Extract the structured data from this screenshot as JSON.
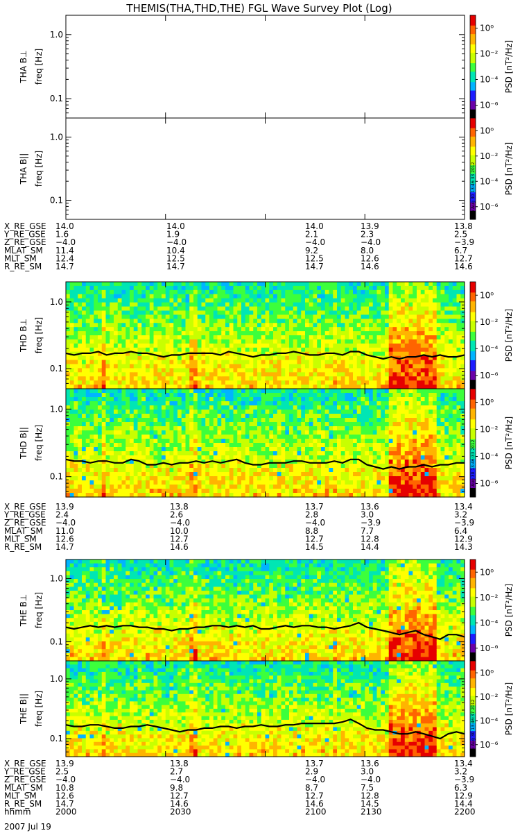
{
  "title": "THEMIS(THA,THD,THE) FGL Wave Survey Plot (Log)",
  "date_label": "2007 Jul 19",
  "colorbar": {
    "label": "PSD [nT²/Hz]",
    "ticks": [
      "10⁰",
      "10⁻²",
      "10⁻⁴",
      "10⁻⁶"
    ],
    "tick_exponents": [
      0,
      -2,
      -4,
      -6
    ],
    "range_exponent": [
      -7,
      1
    ]
  },
  "ylabel_freq": "freq [Hz]",
  "yticks": [
    {
      "value": 1.0,
      "label": "1.0"
    },
    {
      "value": 0.1,
      "label": "0.1"
    }
  ],
  "chart_data": [
    {
      "type": "heatmap",
      "probe": "THA",
      "panel": "THA B⊥",
      "has_data": false,
      "stamp": "",
      "yrange_hz": [
        0.05,
        2.0
      ],
      "log_y": true
    },
    {
      "type": "heatmap",
      "probe": "THA",
      "panel": "THA B||",
      "has_data": false,
      "stamp": "Thu Aug 30 13:46:33 2012",
      "yrange_hz": [
        0.05,
        2.0
      ],
      "log_y": true
    },
    {
      "type": "heatmap",
      "probe": "THD",
      "panel": "THD B⊥",
      "has_data": true,
      "stamp": "",
      "yrange_hz": [
        0.05,
        2.0
      ],
      "log_y": true,
      "line_freq_hz": [
        0.17,
        0.16,
        0.17,
        0.17,
        0.18,
        0.16,
        0.17,
        0.17,
        0.18,
        0.17,
        0.17,
        0.16,
        0.15,
        0.16,
        0.16,
        0.17,
        0.17,
        0.17,
        0.17,
        0.16,
        0.18,
        0.17,
        0.16,
        0.15,
        0.16,
        0.16,
        0.17,
        0.17,
        0.18,
        0.17,
        0.16,
        0.16,
        0.17,
        0.17,
        0.16,
        0.18,
        0.18,
        0.16,
        0.15,
        0.14,
        0.15,
        0.14,
        0.15,
        0.15,
        0.16,
        0.15,
        0.16,
        0.15,
        0.15,
        0.16
      ]
    },
    {
      "type": "heatmap",
      "probe": "THD",
      "panel": "THD B||",
      "has_data": true,
      "stamp": "Thu Aug 30 13:46:33 2012",
      "yrange_hz": [
        0.05,
        2.0
      ],
      "log_y": true,
      "line_freq_hz": [
        0.18,
        0.17,
        0.17,
        0.16,
        0.17,
        0.17,
        0.16,
        0.16,
        0.18,
        0.17,
        0.15,
        0.15,
        0.16,
        0.15,
        0.16,
        0.16,
        0.17,
        0.16,
        0.17,
        0.16,
        0.17,
        0.18,
        0.16,
        0.15,
        0.15,
        0.16,
        0.16,
        0.16,
        0.17,
        0.17,
        0.16,
        0.16,
        0.16,
        0.17,
        0.16,
        0.18,
        0.18,
        0.15,
        0.14,
        0.13,
        0.14,
        0.13,
        0.14,
        0.14,
        0.15,
        0.14,
        0.15,
        0.15,
        0.16,
        0.16
      ]
    },
    {
      "type": "heatmap",
      "probe": "THE",
      "panel": "THE B⊥",
      "has_data": true,
      "stamp": "",
      "yrange_hz": [
        0.05,
        2.0
      ],
      "log_y": true,
      "line_freq_hz": [
        0.17,
        0.16,
        0.17,
        0.18,
        0.17,
        0.18,
        0.17,
        0.18,
        0.18,
        0.17,
        0.17,
        0.16,
        0.16,
        0.15,
        0.16,
        0.16,
        0.17,
        0.17,
        0.18,
        0.18,
        0.17,
        0.18,
        0.17,
        0.18,
        0.16,
        0.16,
        0.17,
        0.18,
        0.17,
        0.18,
        0.18,
        0.17,
        0.17,
        0.16,
        0.17,
        0.18,
        0.2,
        0.17,
        0.16,
        0.15,
        0.14,
        0.13,
        0.14,
        0.15,
        0.13,
        0.12,
        0.11,
        0.13,
        0.13,
        0.12
      ]
    },
    {
      "type": "heatmap",
      "probe": "THE",
      "panel": "THE B||",
      "has_data": true,
      "stamp": "Thu Aug 30 13:46:37 2012",
      "yrange_hz": [
        0.05,
        2.0
      ],
      "log_y": true,
      "line_freq_hz": [
        0.17,
        0.16,
        0.16,
        0.17,
        0.17,
        0.16,
        0.15,
        0.15,
        0.16,
        0.16,
        0.17,
        0.16,
        0.15,
        0.14,
        0.13,
        0.14,
        0.14,
        0.15,
        0.15,
        0.16,
        0.16,
        0.15,
        0.16,
        0.16,
        0.17,
        0.16,
        0.16,
        0.17,
        0.17,
        0.18,
        0.18,
        0.18,
        0.18,
        0.18,
        0.19,
        0.21,
        0.18,
        0.15,
        0.14,
        0.14,
        0.13,
        0.12,
        0.12,
        0.13,
        0.12,
        0.11,
        0.1,
        0.12,
        0.13,
        0.12
      ]
    }
  ],
  "ephemeris": [
    {
      "probe": "THA",
      "rows": [
        {
          "label": "X_RE_GSE",
          "values": [
            "14.0",
            "14.0",
            "14.0",
            "13.9",
            "13.8"
          ]
        },
        {
          "label": "Y_RE_GSE",
          "values": [
            "1.6",
            "1.9",
            "2.1",
            "2.3",
            "2.5"
          ]
        },
        {
          "label": "Z_RE_GSE",
          "values": [
            "−4.0",
            "−4.0",
            "−4.0",
            "−4.0",
            "−3.9"
          ]
        },
        {
          "label": "MLAT_SM",
          "values": [
            "11.4",
            "10.4",
            "9.2",
            "8.0",
            "6.7"
          ]
        },
        {
          "label": "MLT_SM",
          "values": [
            "12.4",
            "12.5",
            "12.5",
            "12.6",
            "12.7"
          ]
        },
        {
          "label": "R_RE_SM",
          "values": [
            "14.7",
            "14.7",
            "14.7",
            "14.6",
            "14.6"
          ]
        }
      ]
    },
    {
      "probe": "THD",
      "rows": [
        {
          "label": "X_RE_GSE",
          "values": [
            "13.9",
            "13.8",
            "13.7",
            "13.6",
            "13.4"
          ]
        },
        {
          "label": "Y_RE_GSE",
          "values": [
            "2.4",
            "2.6",
            "2.8",
            "3.0",
            "3.2"
          ]
        },
        {
          "label": "Z_RE_GSE",
          "values": [
            "−4.0",
            "−4.0",
            "−4.0",
            "−3.9",
            "−3.9"
          ]
        },
        {
          "label": "MLAT_SM",
          "values": [
            "11.0",
            "10.0",
            "8.8",
            "7.7",
            "6.4"
          ]
        },
        {
          "label": "MLT_SM",
          "values": [
            "12.6",
            "12.7",
            "12.7",
            "12.8",
            "12.9"
          ]
        },
        {
          "label": "R_RE_SM",
          "values": [
            "14.7",
            "14.6",
            "14.5",
            "14.4",
            "14.3"
          ]
        }
      ]
    },
    {
      "probe": "THE",
      "rows": [
        {
          "label": "X_RE_GSE",
          "values": [
            "13.9",
            "13.8",
            "13.7",
            "13.6",
            "13.4"
          ]
        },
        {
          "label": "Y_RE_GSE",
          "values": [
            "2.5",
            "2.7",
            "2.9",
            "3.0",
            "3.2"
          ]
        },
        {
          "label": "Z_RE_GSE",
          "values": [
            "−4.0",
            "−4.0",
            "−4.0",
            "−4.0",
            "−3.9"
          ]
        },
        {
          "label": "MLAT_SM",
          "values": [
            "10.8",
            "9.8",
            "8.7",
            "7.5",
            "6.3"
          ]
        },
        {
          "label": "MLT_SM",
          "values": [
            "12.6",
            "12.7",
            "12.7",
            "12.8",
            "12.9"
          ]
        },
        {
          "label": "R_RE_SM",
          "values": [
            "14.7",
            "14.6",
            "14.6",
            "14.5",
            "14.4"
          ]
        },
        {
          "label": "hhmm",
          "values": [
            "2000",
            "2030",
            "2100",
            "2130",
            "2200"
          ]
        }
      ]
    }
  ],
  "colors": {
    "spectrogram_scale": [
      "#000000",
      "#6a00a8",
      "#1c1cff",
      "#00b4ff",
      "#00e6b4",
      "#3cff3c",
      "#c8ff00",
      "#ffff00",
      "#ffb400",
      "#ff6400",
      "#e60000",
      "#a00000"
    ]
  }
}
